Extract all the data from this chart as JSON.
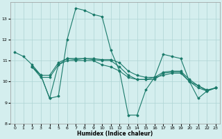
{
  "xlabel": "Humidex (Indice chaleur)",
  "background_color": "#d4eeee",
  "grid_color": "#aed4d4",
  "line_color": "#1a7a6a",
  "xlim": [
    -0.5,
    23.5
  ],
  "ylim": [
    8,
    13.8
  ],
  "yticks": [
    8,
    9,
    10,
    11,
    12,
    13
  ],
  "xticks": [
    0,
    1,
    2,
    3,
    4,
    5,
    6,
    7,
    8,
    9,
    10,
    11,
    12,
    13,
    14,
    15,
    16,
    17,
    18,
    19,
    20,
    21,
    22,
    23
  ],
  "series": [
    {
      "x": [
        0,
        1,
        2,
        3,
        4,
        5,
        6,
        7,
        8,
        9,
        10,
        11,
        12,
        13,
        14,
        15,
        16,
        17,
        18,
        19,
        20,
        21,
        22,
        23
      ],
      "y": [
        11.4,
        11.2,
        10.8,
        10.3,
        9.2,
        9.3,
        12.0,
        13.5,
        13.4,
        13.2,
        13.1,
        11.5,
        10.5,
        8.4,
        8.4,
        9.6,
        10.2,
        11.3,
        11.2,
        11.1,
        10.0,
        9.2,
        9.55,
        9.7
      ]
    },
    {
      "x": [
        2,
        3,
        4,
        5,
        6,
        7,
        8,
        9,
        10,
        11,
        12,
        13,
        14,
        15,
        16,
        17,
        18,
        19,
        20,
        21,
        22,
        23
      ],
      "y": [
        10.7,
        10.2,
        10.2,
        10.8,
        11.0,
        11.0,
        11.0,
        11.0,
        10.8,
        10.7,
        10.5,
        10.2,
        10.1,
        10.1,
        10.2,
        10.3,
        10.4,
        10.4,
        10.0,
        9.8,
        9.55,
        9.7
      ]
    },
    {
      "x": [
        2,
        3,
        4,
        5,
        6,
        7,
        8,
        9,
        10,
        11,
        12,
        13,
        14,
        15,
        16,
        17,
        18,
        19,
        20,
        21,
        22,
        23
      ],
      "y": [
        10.7,
        10.3,
        9.2,
        10.8,
        11.1,
        11.05,
        11.1,
        11.05,
        11.0,
        11.0,
        10.7,
        10.3,
        10.1,
        10.1,
        10.1,
        10.4,
        10.45,
        10.45,
        10.0,
        9.7,
        9.55,
        9.7
      ]
    },
    {
      "x": [
        2,
        3,
        4,
        5,
        6,
        7,
        8,
        9,
        10,
        11,
        12,
        13,
        14,
        15,
        16,
        17,
        18,
        19,
        20,
        21,
        22,
        23
      ],
      "y": [
        10.7,
        10.3,
        10.3,
        10.9,
        11.1,
        11.1,
        11.1,
        11.1,
        11.05,
        11.05,
        10.9,
        10.5,
        10.3,
        10.2,
        10.2,
        10.45,
        10.5,
        10.5,
        10.1,
        9.8,
        9.6,
        9.7
      ]
    }
  ]
}
